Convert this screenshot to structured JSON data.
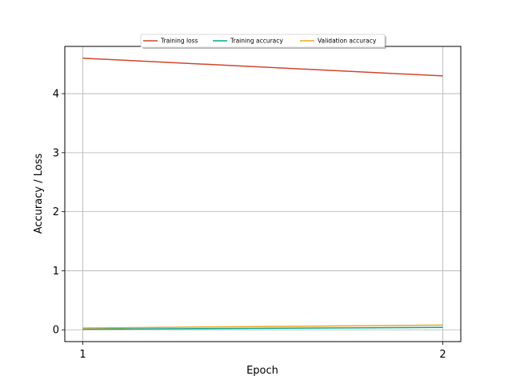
{
  "chart_data": {
    "type": "line",
    "title": "",
    "xlabel": "Epoch",
    "ylabel": "Accuracy / Loss",
    "x": [
      1,
      2
    ],
    "xticks": [
      "1",
      "2"
    ],
    "yticks": [
      "0",
      "1",
      "2",
      "3",
      "4"
    ],
    "xlim": [
      0.95,
      2.05
    ],
    "ylim": [
      -0.2,
      4.8
    ],
    "grid": true,
    "legend_position": "top-center",
    "series": [
      {
        "name": "Training loss",
        "values": [
          4.6,
          4.3
        ],
        "color": "#d2452f"
      },
      {
        "name": "Training accuracy",
        "values": [
          0.01,
          0.04
        ],
        "color": "#0aa58f"
      },
      {
        "name": "Validation accuracy",
        "values": [
          0.03,
          0.08
        ],
        "color": "#e6a826"
      }
    ]
  }
}
